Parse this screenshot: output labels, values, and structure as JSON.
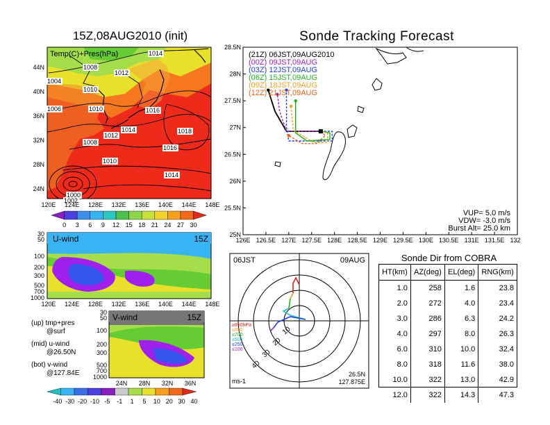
{
  "left_title": "15Z,08AUG2010 (init)",
  "right_title": "Sonde Tracking Forecast",
  "surface_map": {
    "label": "Temp(C)+Pres(hPa)",
    "lat_labels": [
      "44N",
      "40N",
      "36N",
      "32N",
      "28N",
      "24N"
    ],
    "lon_labels": [
      "120E",
      "124E",
      "128E",
      "132E",
      "136E",
      "140E",
      "144E",
      "148E"
    ],
    "isobars": [
      "1008",
      "1012",
      "1014",
      "1004",
      "1010",
      "1010",
      "1006",
      "1016",
      "1018",
      "1008",
      "1012",
      "1014",
      "1016",
      "1010",
      "1014",
      "1000",
      "1002"
    ],
    "colorbar": [
      "0",
      "3",
      "6",
      "9",
      "12",
      "15",
      "18",
      "21",
      "24",
      "27",
      "30"
    ]
  },
  "uwind": {
    "label": "U-wind",
    "time": "15Z",
    "p_labels": [
      "30",
      "50",
      "100",
      "200",
      "300",
      "500",
      "700",
      "1000"
    ],
    "lon_labels": [
      "120E",
      "124E",
      "128E",
      "132E",
      "136E",
      "140E",
      "144E",
      "148E"
    ]
  },
  "vwind": {
    "label": "V-wind",
    "time": "15Z",
    "p_labels": [
      "30",
      "50",
      "100",
      "200",
      "300",
      "500",
      "700",
      "1000"
    ],
    "lat_labels": [
      "24N",
      "28N",
      "32N",
      "36N"
    ]
  },
  "wind_colorbar": [
    "-40",
    "-30",
    "-20",
    "-10",
    "-5",
    "-1",
    "1",
    "5",
    "10",
    "20",
    "30",
    "40"
  ],
  "notes": [
    {
      "a": "(up) tmp+pres",
      "b": "@surf"
    },
    {
      "a": "(mid) u-wind",
      "b": "@26.50N"
    },
    {
      "a": "(bot) v-wind",
      "b": "@127.84E"
    }
  ],
  "chart_data": {
    "type": "line",
    "title": "Sonde Tracking Forecast",
    "xlabel": "",
    "ylabel": "",
    "xlim": [
      126,
      132
    ],
    "ylim": [
      25,
      28.5
    ],
    "x_ticks": [
      "126E",
      "126.5E",
      "127E",
      "127.5E",
      "128E",
      "128.5E",
      "129E",
      "129.5E",
      "130E",
      "130.5E",
      "131E",
      "131.5E",
      "132E"
    ],
    "y_ticks": [
      "25N",
      "25.5N",
      "26N",
      "26.5N",
      "27N",
      "27.5N",
      "28N",
      "28.5N"
    ],
    "legend": [
      {
        "text": "(21Z)  06JST,09AUG2010",
        "color": "#000000"
      },
      {
        "text": "(00Z)  09JST,09AUG",
        "color": "#a020c0"
      },
      {
        "text": "(03Z)  12JST,09AUG",
        "color": "#1f3fe0"
      },
      {
        "text": "(06Z)  15JST,09AUG",
        "color": "#20b020"
      },
      {
        "text": "(09Z)  18JST,09AUG",
        "color": "#f0a020"
      },
      {
        "text": "(12Z)  21JST,09AUG",
        "color": "#f06010"
      }
    ],
    "release_point": [
      127.7,
      26.93
    ],
    "series": [
      {
        "color": "#000000",
        "x": [
          127.7,
          127.3,
          126.95,
          126.7,
          126.55
        ],
        "y": [
          26.93,
          26.93,
          26.93,
          27.3,
          27.7
        ]
      },
      {
        "color": "#a020c0",
        "x": [
          127.7,
          127.2,
          126.95,
          126.8,
          126.75
        ],
        "y": [
          26.93,
          26.93,
          26.93,
          27.3,
          27.62
        ]
      },
      {
        "color": "#1f3fe0",
        "x": [
          127.7,
          127.95,
          127.95,
          127.0,
          126.95,
          126.95
        ],
        "y": [
          26.93,
          26.93,
          26.75,
          26.75,
          27.0,
          27.7
        ]
      },
      {
        "color": "#20b020",
        "x": [
          127.7,
          127.9,
          127.9,
          127.4,
          127.15,
          127.15
        ],
        "y": [
          26.93,
          26.9,
          26.78,
          26.75,
          26.9,
          27.5
        ]
      },
      {
        "color": "#f0a020",
        "x": [
          127.7,
          127.85,
          127.85,
          127.55,
          127.1,
          127.05
        ],
        "y": [
          26.93,
          26.9,
          26.72,
          26.72,
          26.95,
          27.4
        ]
      },
      {
        "color": "#f06010",
        "x": [
          127.7,
          127.8,
          127.6,
          127.3,
          127.0
        ],
        "y": [
          26.93,
          26.85,
          26.7,
          26.7,
          26.85
        ]
      }
    ],
    "vup": "VUP=  5.0  m/s",
    "vdw": "VDW=  -3.0  m/s",
    "burst": "Burst  Alt=  25.0  km"
  },
  "hodograph": {
    "left_label": "06JST",
    "right_label": "09AUG",
    "legend": [
      {
        "text": "≥850hPa",
        "color": "#e02020"
      },
      {
        "text": "≤850",
        "color": "#f0a020"
      },
      {
        "text": "≤700",
        "color": "#20b020"
      },
      {
        "text": "≤500",
        "color": "#20c0c0"
      },
      {
        "text": "≤250",
        "color": "#1f3fe0"
      },
      {
        "text": "≤100",
        "color": "#a020c0"
      }
    ],
    "ring_labels": [
      "10",
      "20",
      "30",
      "40"
    ],
    "units": "ms-1",
    "coords_lat": "26.5N",
    "coords_lon": "127.875E"
  },
  "sonde_dir": {
    "title": "Sonde Dir from COBRA",
    "headers": [
      "HT(km)",
      "AZ(deg)",
      "EL(deg)",
      "RNG(km)"
    ],
    "rows": [
      [
        "1.0",
        "258",
        "1.6",
        "23.8"
      ],
      [
        "2.0",
        "272",
        "4.0",
        "23.4"
      ],
      [
        "3.0",
        "286",
        "6.3",
        "24.2"
      ],
      [
        "4.0",
        "297",
        "8.0",
        "26.3"
      ],
      [
        "6.0",
        "310",
        "10.0",
        "32.4"
      ],
      [
        "8.0",
        "318",
        "11.6",
        "38.0"
      ],
      [
        "10.0",
        "322",
        "13.0",
        "42.9"
      ],
      [
        "12.0",
        "322",
        "14.3",
        "47.3"
      ]
    ]
  },
  "colors": {
    "warm": "#ee2a1a",
    "orange": "#f6781e",
    "yellow": "#e8e02a",
    "green": "#66cc33",
    "lightgreen": "#a6dd4a",
    "purple": "#a020f0",
    "blue": "#3355ee",
    "sky": "#38b4f4"
  }
}
